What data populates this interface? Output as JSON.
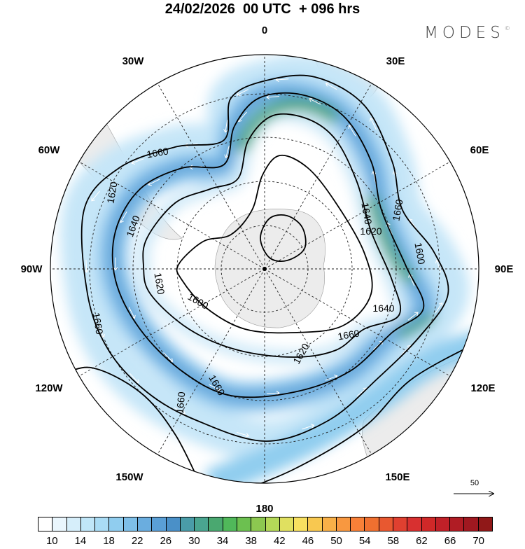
{
  "header": {
    "title": "24/02/2026  00 UTC  + 096 hrs",
    "logo": "MODES",
    "logo_mark": "©"
  },
  "map": {
    "projection": "south-polar-stereographic",
    "longitude_labels": [
      "0",
      "30E",
      "60E",
      "90E",
      "120E",
      "150E",
      "180",
      "150W",
      "120W",
      "90W",
      "60W",
      "30W"
    ],
    "contour_labels": [
      "1600",
      "1600",
      "1620",
      "1620",
      "1620",
      "1620",
      "1640",
      "1640",
      "1640",
      "1660",
      "1660",
      "1660",
      "1660",
      "1660",
      "1660"
    ],
    "vector_scale": {
      "label": "50"
    }
  },
  "colorbar": {
    "colors": [
      "#ffffff",
      "#eaf6fd",
      "#d6eefa",
      "#c0e6f8",
      "#aadcf5",
      "#90cdef",
      "#7ebfe8",
      "#6aaddf",
      "#5a9fd6",
      "#4a90c8",
      "#4a9ca8",
      "#4aa590",
      "#4aa870",
      "#50b85a",
      "#6cc050",
      "#8cc850",
      "#b4d858",
      "#e0e060",
      "#f8e060",
      "#f8c850",
      "#f8b048",
      "#f89840",
      "#f88038",
      "#f07030",
      "#e85830",
      "#e04030",
      "#d83030",
      "#d02828",
      "#c02028",
      "#b01c24",
      "#a01820",
      "#901818"
    ],
    "tick_labels": [
      "10",
      "14",
      "18",
      "22",
      "26",
      "30",
      "34",
      "38",
      "42",
      "46",
      "50",
      "54",
      "58",
      "62",
      "66",
      "70"
    ]
  }
}
